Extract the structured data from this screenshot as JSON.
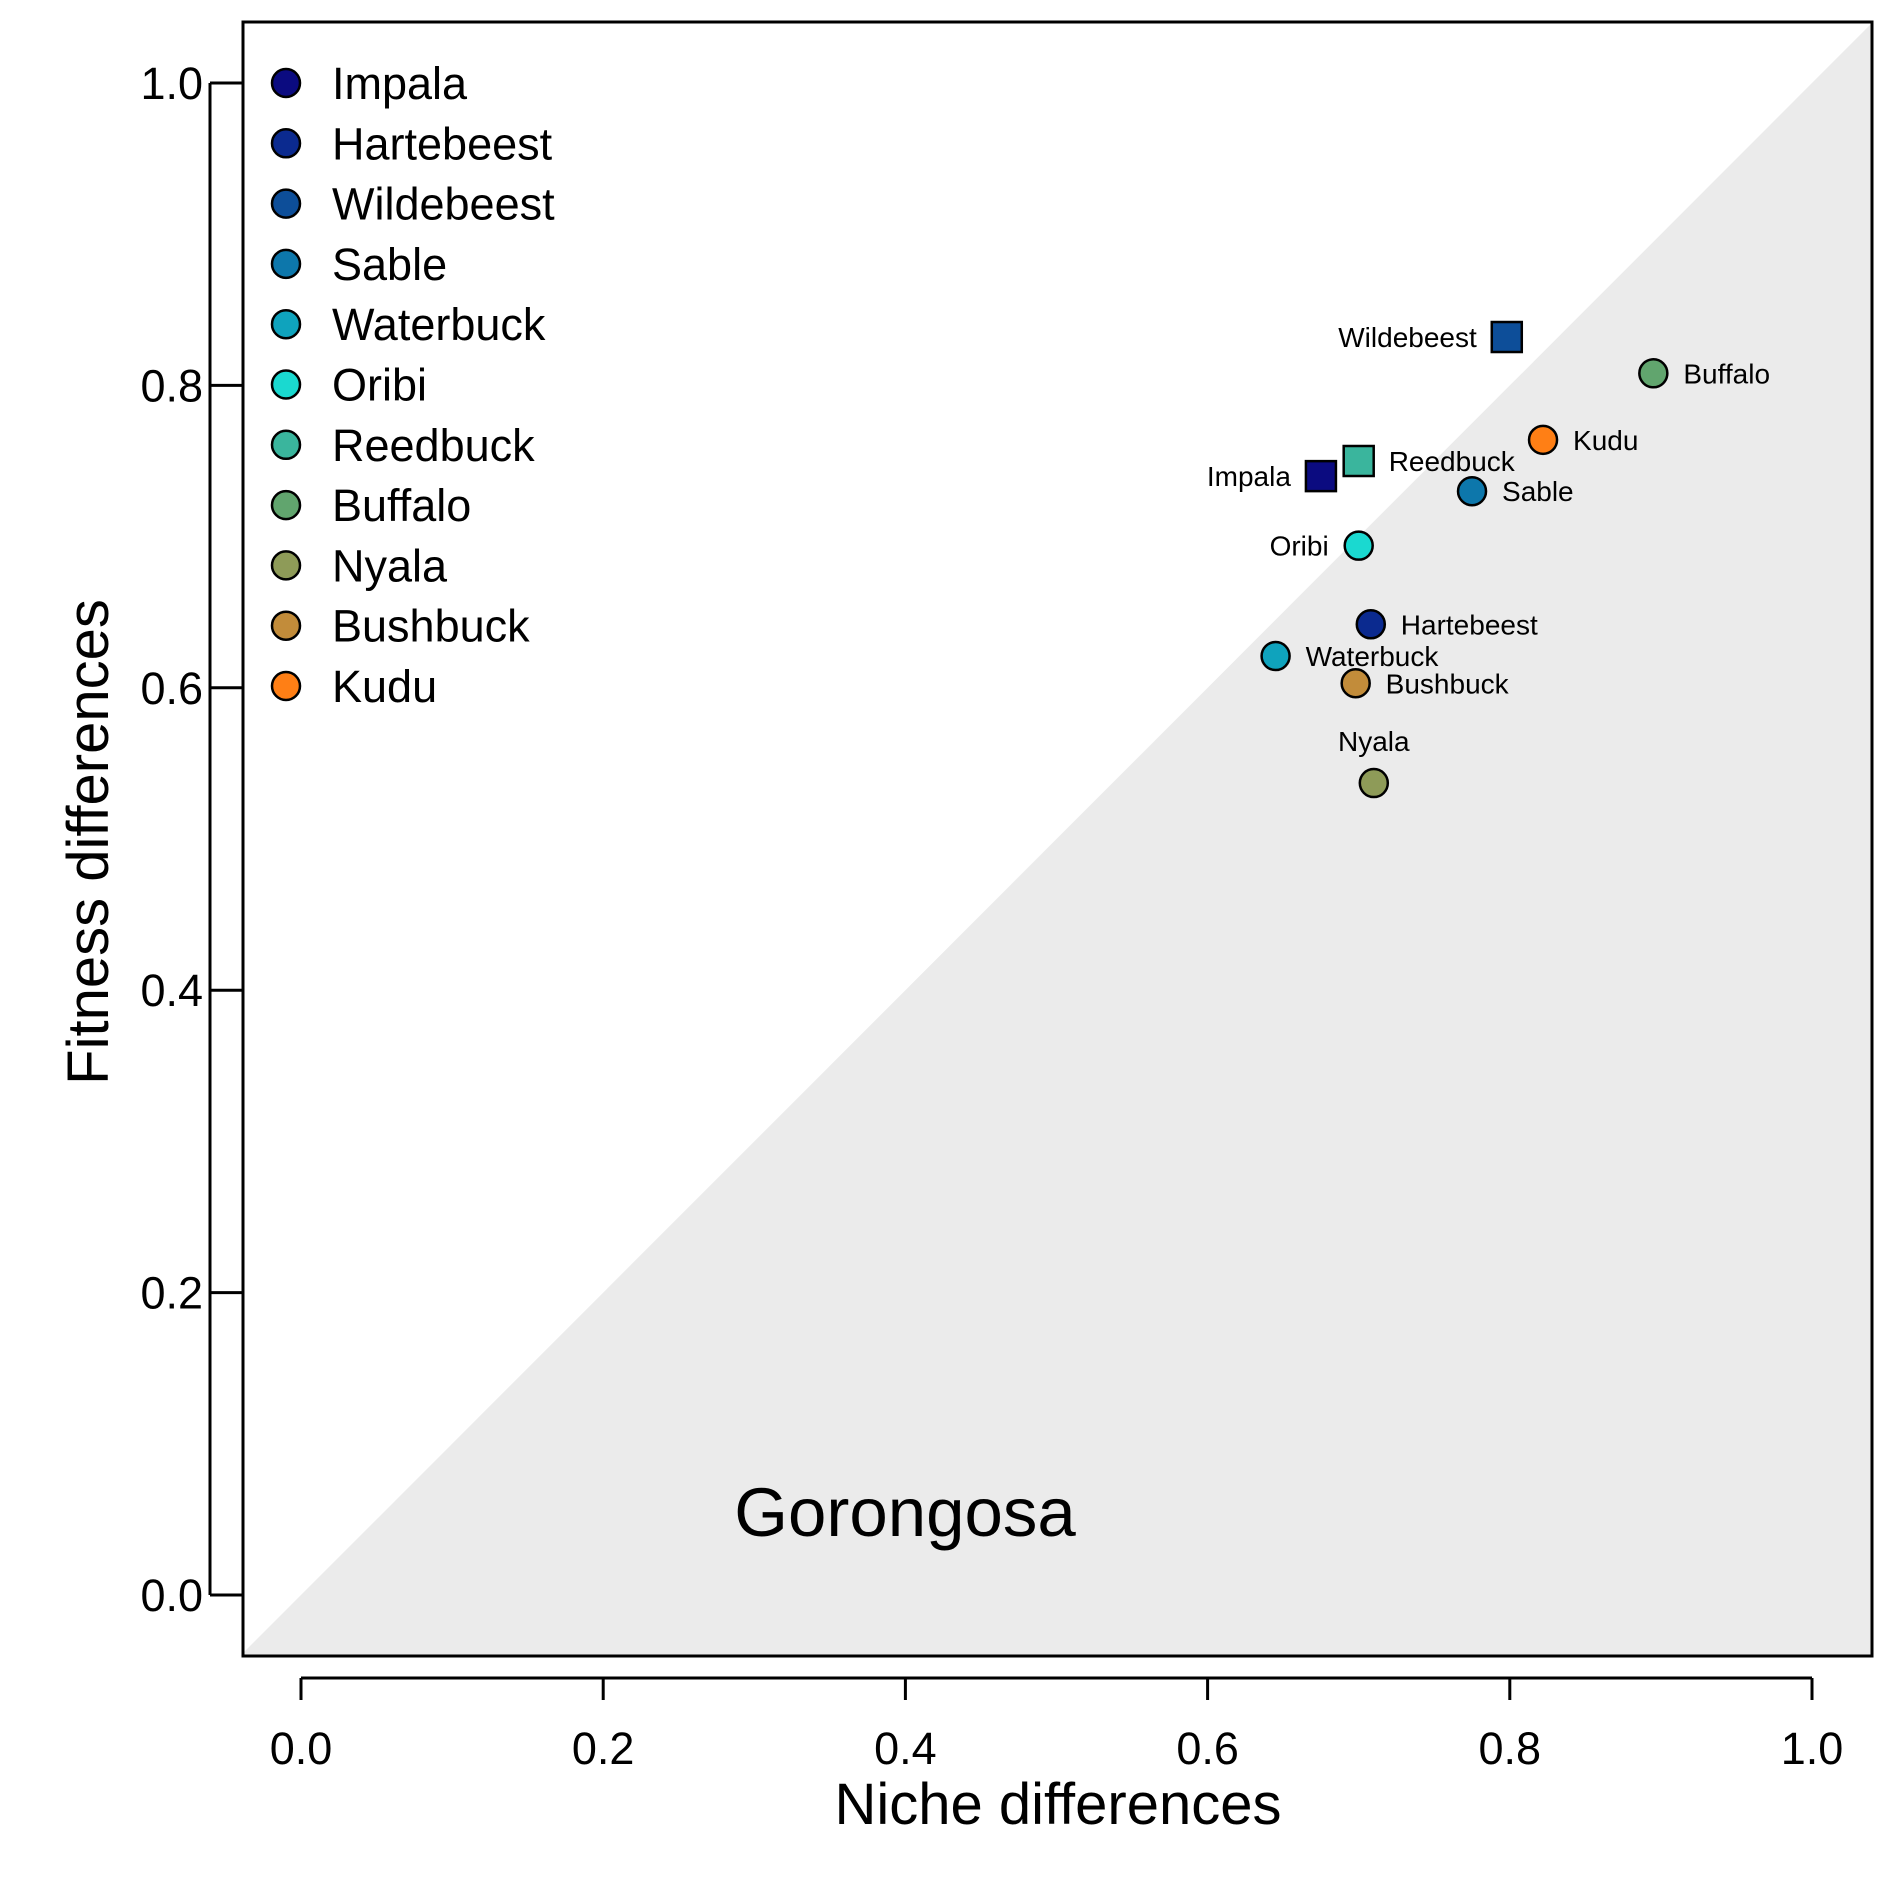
{
  "chart_data": {
    "type": "scatter",
    "xlabel": "Niche differences",
    "ylabel": "Fitness differences",
    "xlim": [
      -0.04,
      1.04
    ],
    "ylim": [
      -0.04,
      1.04
    ],
    "x_ticks": [
      "0.0",
      "0.2",
      "0.4",
      "0.6",
      "0.8",
      "1.0"
    ],
    "y_ticks": [
      "0.0",
      "0.2",
      "0.4",
      "0.6",
      "0.8",
      "1.0"
    ],
    "region_label": "Gorongosa",
    "shaded_region": "below the 1:1 line (coexistence region)",
    "shaded_color": "#ebebeb",
    "legend_position": "top-left",
    "legend": [
      {
        "name": "Impala",
        "color": "#0b0b80"
      },
      {
        "name": "Hartebeest",
        "color": "#0b2a8f"
      },
      {
        "name": "Wildebeest",
        "color": "#0d4e99"
      },
      {
        "name": "Sable",
        "color": "#0d77ab"
      },
      {
        "name": "Waterbuck",
        "color": "#0fa3bd"
      },
      {
        "name": "Oribi",
        "color": "#1ad9d0"
      },
      {
        "name": "Reedbuck",
        "color": "#3ab59d"
      },
      {
        "name": "Buffalo",
        "color": "#61a56e"
      },
      {
        "name": "Nyala",
        "color": "#8e9b58"
      },
      {
        "name": "Bushbuck",
        "color": "#c28c3a"
      },
      {
        "name": "Kudu",
        "color": "#ff7f15"
      }
    ],
    "points": [
      {
        "name": "Wildebeest",
        "x": 0.798,
        "y": 0.832,
        "shape": "square",
        "color": "#0d4e99",
        "label_side": "left"
      },
      {
        "name": "Buffalo",
        "x": 0.895,
        "y": 0.808,
        "shape": "circle",
        "color": "#61a56e",
        "label_side": "right"
      },
      {
        "name": "Kudu",
        "x": 0.822,
        "y": 0.764,
        "shape": "circle",
        "color": "#ff7f15",
        "label_side": "right"
      },
      {
        "name": "Reedbuck",
        "x": 0.7,
        "y": 0.75,
        "shape": "square",
        "color": "#3ab59d",
        "label_side": "right"
      },
      {
        "name": "Impala",
        "x": 0.675,
        "y": 0.74,
        "shape": "square",
        "color": "#0b0b80",
        "label_side": "left"
      },
      {
        "name": "Sable",
        "x": 0.775,
        "y": 0.73,
        "shape": "circle",
        "color": "#0d77ab",
        "label_side": "right"
      },
      {
        "name": "Oribi",
        "x": 0.7,
        "y": 0.694,
        "shape": "circle",
        "color": "#1ad9d0",
        "label_side": "left"
      },
      {
        "name": "Hartebeest",
        "x": 0.708,
        "y": 0.642,
        "shape": "circle",
        "color": "#0b2a8f",
        "label_side": "right"
      },
      {
        "name": "Waterbuck",
        "x": 0.645,
        "y": 0.621,
        "shape": "circle",
        "color": "#0fa3bd",
        "label_side": "right"
      },
      {
        "name": "Bushbuck",
        "x": 0.698,
        "y": 0.603,
        "shape": "circle",
        "color": "#c28c3a",
        "label_side": "right"
      },
      {
        "name": "Nyala",
        "x": 0.71,
        "y": 0.537,
        "shape": "circle",
        "color": "#8e9b58",
        "label_side": "top"
      }
    ]
  }
}
